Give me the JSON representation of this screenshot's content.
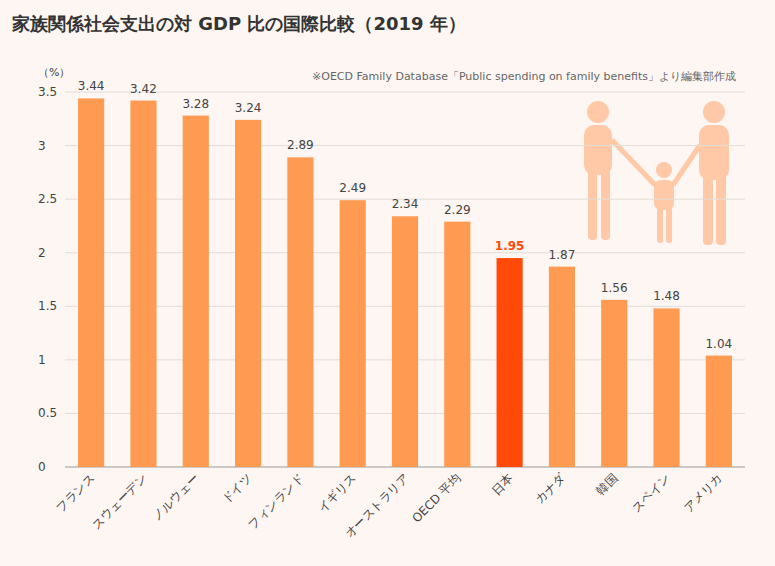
{
  "chart_data": {
    "type": "bar",
    "title": "家族関係社会支出の対 GDP 比の国際比較（2019 年）",
    "ylabel": "（%）",
    "source": "※OECD Family Database「Public spending on family benefits」より編集部作成",
    "categories": [
      "フランス",
      "スウェーデン",
      "ノルウェー",
      "ドイツ",
      "フィンランド",
      "イギリス",
      "オーストラリア",
      "OECD 平均",
      "日本",
      "カナダ",
      "韓国",
      "スペイン",
      "アメリカ"
    ],
    "values": [
      3.44,
      3.42,
      3.28,
      3.24,
      2.89,
      2.49,
      2.34,
      2.29,
      1.95,
      1.87,
      1.56,
      1.48,
      1.04
    ],
    "colors": [
      "#ff9a52",
      "#ff9a52",
      "#ff9a52",
      "#ff9a52",
      "#ff9a52",
      "#ff9a52",
      "#ff9a52",
      "#ff9a52",
      "#ff4a0a",
      "#ff9a52",
      "#ff9a52",
      "#ff9a52",
      "#ff9a52"
    ],
    "ylim": [
      0,
      3.5
    ],
    "yticks": [
      0,
      0.5,
      1,
      1.5,
      2,
      2.5,
      3,
      3.5
    ],
    "grid": true,
    "data_labels": true
  }
}
